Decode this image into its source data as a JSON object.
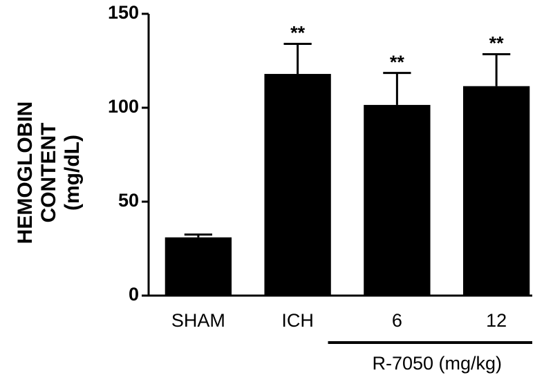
{
  "chart_data": {
    "type": "bar",
    "y_label": [
      "HEMOGLOBIN",
      "CONTENT",
      "(mg/dL)"
    ],
    "categories": [
      "SHAM",
      "ICH",
      "6",
      "12"
    ],
    "values": [
      31,
      118,
      101.5,
      111.5
    ],
    "errors": [
      1.5,
      16,
      17,
      17
    ],
    "annotations": [
      null,
      "**",
      "**",
      "**"
    ],
    "group_label": "R-7050 (mg/kg)",
    "color": "#000000",
    "ylim": [
      0,
      150
    ],
    "yticks": [
      0,
      50,
      100,
      150
    ],
    "grid": false
  }
}
